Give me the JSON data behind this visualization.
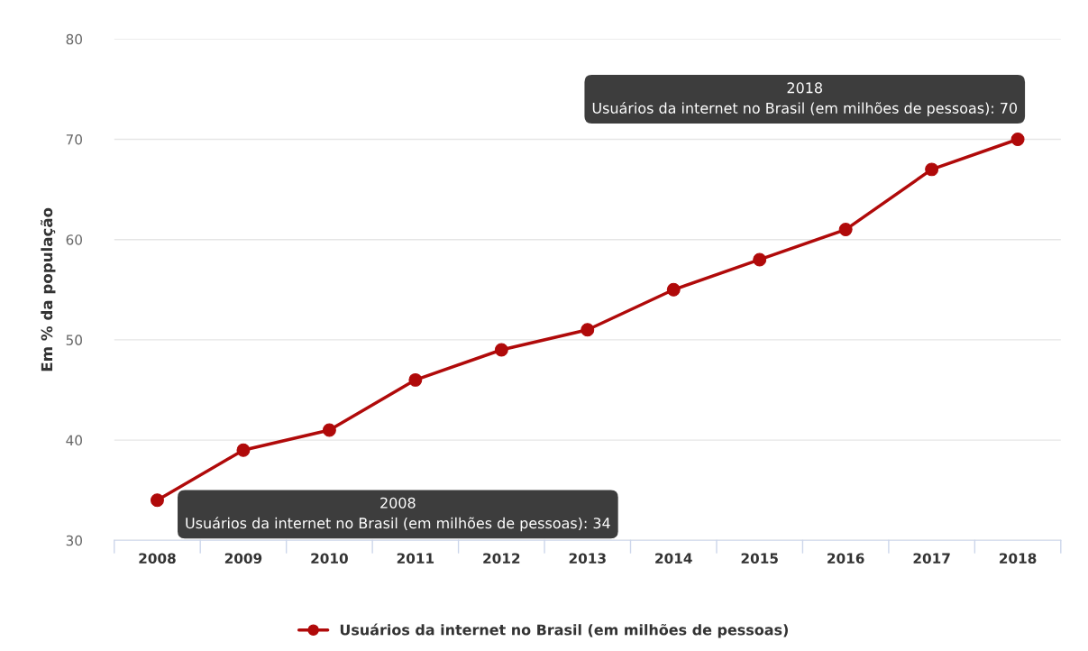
{
  "chart_data": {
    "type": "line",
    "ylabel": "Em % da população",
    "categories": [
      "2008",
      "2009",
      "2010",
      "2011",
      "2012",
      "2013",
      "2014",
      "2015",
      "2016",
      "2017",
      "2018"
    ],
    "series": [
      {
        "name": "Usuários da internet no Brasil (em milhões de pessoas)",
        "color": "#b00a0a",
        "values": [
          34,
          39,
          41,
          46,
          49,
          51,
          55,
          58,
          61,
          67,
          70
        ]
      }
    ],
    "ylim": [
      30,
      80
    ],
    "yticks": [
      30,
      40,
      50,
      60,
      70,
      80
    ],
    "grid": "y",
    "legend": "bottom",
    "marker": "circle",
    "line_style": "solid",
    "annotations": [
      {
        "text": "2008\nUsuários da internet no Brasil (em milhões de pessoas): 34",
        "x": "2008",
        "y": 34
      },
      {
        "text": "2018\nUsuários da internet no Brasil (em milhões de pessoas): 70",
        "x": "2018",
        "y": 70
      }
    ]
  }
}
